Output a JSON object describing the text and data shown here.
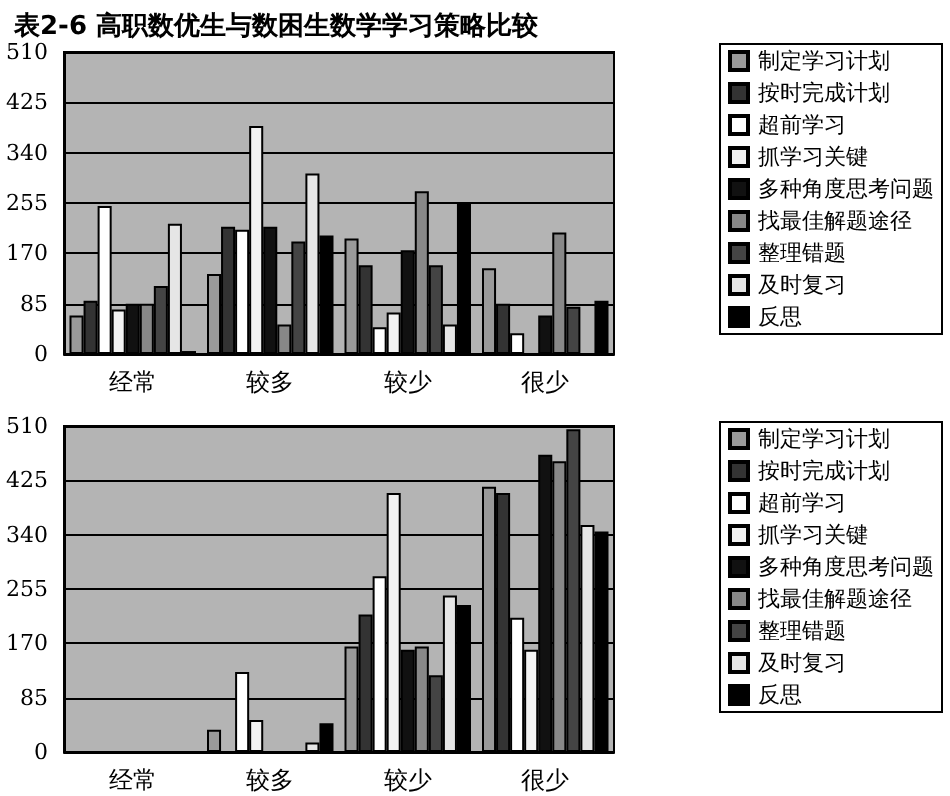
{
  "chart_data": [
    {
      "type": "bar",
      "title": "表2-6 高职数优生与数困生数学学习策略比较",
      "categories": [
        "经常",
        "较多",
        "较少",
        "很少"
      ],
      "ylim": [
        0,
        510
      ],
      "yticks": [
        0,
        85,
        170,
        255,
        340,
        425,
        510
      ],
      "grid": "y",
      "legend": "right",
      "series": [
        {
          "name": "制定学习计划",
          "color": "#9a9a9a",
          "values": [
            65,
            135,
            195,
            145
          ]
        },
        {
          "name": "按时完成计划",
          "color": "#333333",
          "values": [
            90,
            215,
            150,
            85
          ]
        },
        {
          "name": "超前学习",
          "color": "#ffffff",
          "values": [
            250,
            210,
            45,
            35
          ]
        },
        {
          "name": "抓学习关键",
          "color": "#f2f2f2",
          "values": [
            75,
            385,
            70,
            null
          ]
        },
        {
          "name": "多种角度思考问题",
          "color": "#111111",
          "values": [
            85,
            215,
            175,
            65
          ]
        },
        {
          "name": "找最佳解题途径",
          "color": "#888888",
          "values": [
            85,
            50,
            275,
            205
          ]
        },
        {
          "name": "整理错题",
          "color": "#444444",
          "values": [
            115,
            190,
            150,
            80
          ]
        },
        {
          "name": "及时复习",
          "color": "#e6e6e6",
          "values": [
            220,
            305,
            50,
            null
          ]
        },
        {
          "name": "反思",
          "color": "#000000",
          "values": [
            5,
            200,
            255,
            90
          ]
        }
      ]
    },
    {
      "type": "bar",
      "categories": [
        "经常",
        "较多",
        "较少",
        "很少"
      ],
      "ylim": [
        0,
        510
      ],
      "yticks": [
        0,
        85,
        170,
        255,
        340,
        425,
        510
      ],
      "grid": "y",
      "legend": "right",
      "series": [
        {
          "name": "制定学习计划",
          "color": "#9a9a9a",
          "values": [
            0,
            35,
            165,
            415
          ]
        },
        {
          "name": "按时完成计划",
          "color": "#333333",
          "values": [
            0,
            0,
            215,
            405
          ]
        },
        {
          "name": "超前学习",
          "color": "#ffffff",
          "values": [
            0,
            125,
            275,
            210
          ]
        },
        {
          "name": "抓学习关键",
          "color": "#f2f2f2",
          "values": [
            0,
            50,
            405,
            160
          ]
        },
        {
          "name": "多种角度思考问题",
          "color": "#111111",
          "values": [
            0,
            0,
            160,
            465
          ]
        },
        {
          "name": "找最佳解题途径",
          "color": "#888888",
          "values": [
            0,
            0,
            165,
            455
          ]
        },
        {
          "name": "整理错题",
          "color": "#444444",
          "values": [
            0,
            0,
            120,
            505
          ]
        },
        {
          "name": "及时复习",
          "color": "#e6e6e6",
          "values": [
            0,
            15,
            245,
            355
          ]
        },
        {
          "name": "反思",
          "color": "#000000",
          "values": [
            0,
            45,
            230,
            345
          ]
        }
      ]
    }
  ]
}
